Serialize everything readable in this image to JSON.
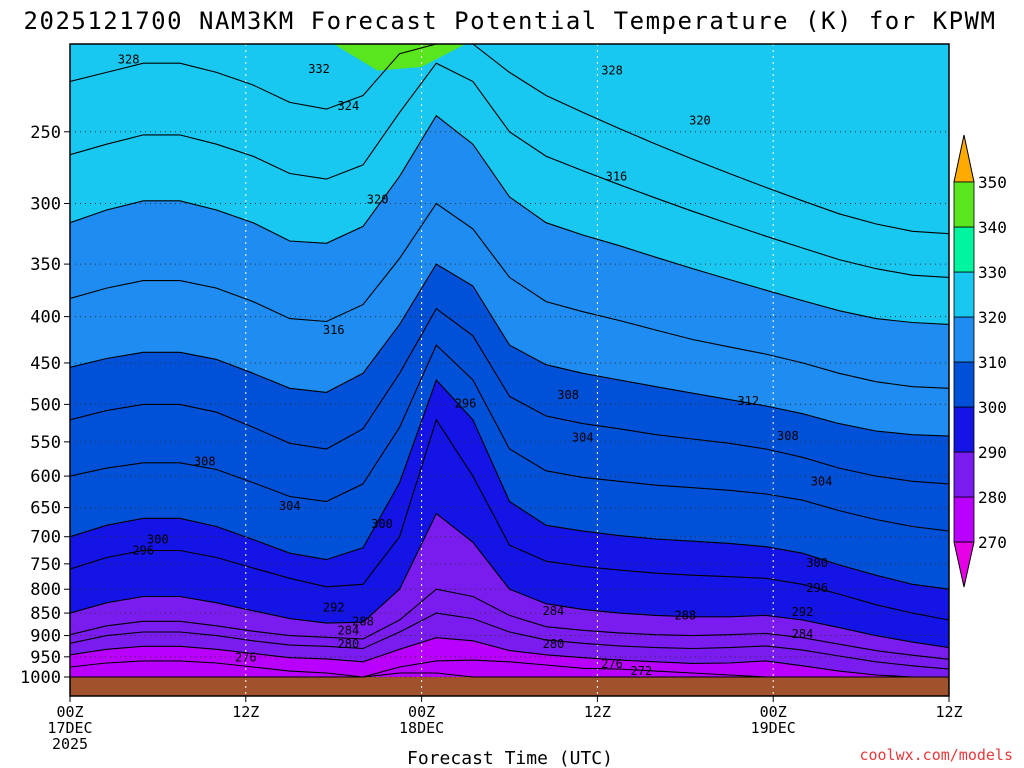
{
  "chart_data": {
    "type": "contour",
    "title": "2025121700 NAM3KM Forecast Potential Temperature (K) for KPWM",
    "xlabel": "Forecast Time (UTC)",
    "ylabel": "Pressure (hPa)",
    "yscale": "log",
    "ylim": [
      1000,
      200
    ],
    "y_ticks": [
      250,
      300,
      350,
      400,
      450,
      500,
      550,
      600,
      650,
      700,
      750,
      800,
      850,
      900,
      950,
      1000
    ],
    "x_range_hours": [
      0,
      60
    ],
    "x_ticks": [
      {
        "hour": 0,
        "l1": "00Z",
        "l2": "17DEC",
        "l3": "2025"
      },
      {
        "hour": 12,
        "l1": "12Z",
        "l2": "",
        "l3": ""
      },
      {
        "hour": 24,
        "l1": "00Z",
        "l2": "18DEC",
        "l3": ""
      },
      {
        "hour": 36,
        "l1": "12Z",
        "l2": "",
        "l3": ""
      },
      {
        "hour": 48,
        "l1": "00Z",
        "l2": "19DEC",
        "l3": ""
      },
      {
        "hour": 60,
        "l1": "12Z",
        "l2": "",
        "l3": ""
      }
    ],
    "colorbar": {
      "levels": [
        270,
        280,
        290,
        300,
        310,
        320,
        330,
        340,
        350
      ],
      "colors": [
        "#e600e6",
        "#b900ff",
        "#7a1cf0",
        "#1414e6",
        "#0050d8",
        "#1e8cf0",
        "#19c8f0",
        "#00f5a0",
        "#5ae61e",
        "#ffff14",
        "#ffaa00"
      ]
    },
    "isentropes": [
      {
        "theta": 272,
        "pres": [
          1000,
          1000,
          1000,
          1000,
          1000,
          1000,
          1000,
          1000,
          1000,
          990,
          990,
          1000,
          1000,
          1000,
          1000,
          1000,
          1000,
          1000,
          1000,
          1000,
          1000,
          1000,
          1000,
          1000,
          1000
        ]
      },
      {
        "theta": 276,
        "pres": [
          975,
          965,
          960,
          960,
          965,
          975,
          985,
          990,
          1000,
          975,
          960,
          958,
          962,
          970,
          978,
          980,
          985,
          990,
          995,
          1000,
          1000,
          1000,
          1000,
          1000,
          1000
        ]
      },
      {
        "theta": 280,
        "pres": [
          945,
          932,
          925,
          925,
          932,
          942,
          952,
          955,
          962,
          932,
          905,
          912,
          935,
          945,
          952,
          958,
          962,
          966,
          965,
          960,
          972,
          985,
          995,
          1000,
          1000
        ]
      },
      {
        "theta": 284,
        "pres": [
          918,
          900,
          892,
          892,
          900,
          912,
          922,
          925,
          930,
          892,
          850,
          862,
          892,
          910,
          918,
          924,
          928,
          930,
          928,
          924,
          934,
          948,
          962,
          972,
          980
        ]
      },
      {
        "theta": 288,
        "pres": [
          898,
          878,
          868,
          868,
          878,
          890,
          900,
          904,
          908,
          865,
          800,
          815,
          855,
          880,
          888,
          894,
          898,
          900,
          898,
          895,
          905,
          920,
          935,
          946,
          956
        ]
      },
      {
        "theta": 292,
        "pres": [
          850,
          828,
          815,
          815,
          828,
          845,
          862,
          872,
          870,
          800,
          660,
          710,
          800,
          830,
          842,
          850,
          855,
          858,
          858,
          855,
          865,
          882,
          900,
          915,
          928
        ]
      },
      {
        "theta": 296,
        "pres": [
          760,
          738,
          725,
          725,
          738,
          758,
          778,
          795,
          790,
          700,
          520,
          600,
          715,
          745,
          755,
          762,
          768,
          772,
          775,
          778,
          790,
          810,
          832,
          850,
          865
        ]
      },
      {
        "theta": 300,
        "pres": [
          700,
          680,
          668,
          668,
          682,
          705,
          730,
          742,
          720,
          610,
          470,
          520,
          640,
          680,
          690,
          698,
          704,
          708,
          712,
          718,
          730,
          752,
          772,
          790,
          800
        ]
      },
      {
        "theta": 304,
        "pres": [
          600,
          588,
          580,
          580,
          590,
          610,
          632,
          640,
          612,
          530,
          430,
          470,
          560,
          592,
          602,
          608,
          614,
          618,
          622,
          628,
          638,
          655,
          670,
          682,
          690
        ]
      },
      {
        "theta": 308,
        "pres": [
          520,
          508,
          500,
          500,
          510,
          530,
          552,
          560,
          532,
          462,
          392,
          420,
          490,
          515,
          525,
          532,
          540,
          546,
          552,
          560,
          572,
          588,
          600,
          608,
          612
        ]
      },
      {
        "theta": 312,
        "pres": [
          455,
          445,
          438,
          438,
          446,
          462,
          480,
          485,
          462,
          408,
          350,
          370,
          430,
          452,
          462,
          470,
          478,
          486,
          494,
          502,
          512,
          525,
          535,
          540,
          542
        ]
      },
      {
        "theta": 316,
        "pres": [
          382,
          372,
          365,
          365,
          372,
          385,
          402,
          405,
          388,
          345,
          300,
          320,
          362,
          385,
          395,
          404,
          414,
          424,
          432,
          440,
          450,
          462,
          472,
          478,
          480
        ]
      },
      {
        "theta": 320,
        "pres": [
          315,
          305,
          298,
          298,
          305,
          315,
          330,
          332,
          318,
          280,
          240,
          258,
          295,
          315,
          325,
          334,
          344,
          354,
          364,
          374,
          384,
          394,
          402,
          406,
          408
        ]
      },
      {
        "theta": 324,
        "pres": [
          265,
          258,
          252,
          252,
          258,
          266,
          278,
          282,
          272,
          238,
          210,
          220,
          250,
          266,
          276,
          286,
          296,
          306,
          316,
          326,
          336,
          346,
          354,
          360,
          362
        ]
      },
      {
        "theta": 328,
        "pres": [
          220,
          215,
          210,
          210,
          215,
          222,
          232,
          236,
          228,
          205,
          200,
          200,
          215,
          228,
          238,
          248,
          258,
          268,
          278,
          288,
          298,
          308,
          316,
          322,
          324
        ]
      }
    ],
    "contour_labels": [
      {
        "text": "328",
        "hour": 4.0,
        "pres": 208
      },
      {
        "text": "332",
        "hour": 17.0,
        "pres": 213
      },
      {
        "text": "328",
        "hour": 37.0,
        "pres": 214
      },
      {
        "text": "324",
        "hour": 19.0,
        "pres": 234
      },
      {
        "text": "320",
        "hour": 43.0,
        "pres": 243
      },
      {
        "text": "316",
        "hour": 37.3,
        "pres": 280
      },
      {
        "text": "320",
        "hour": 21.0,
        "pres": 297
      },
      {
        "text": "316",
        "hour": 18.0,
        "pres": 414
      },
      {
        "text": "308",
        "hour": 34.0,
        "pres": 488
      },
      {
        "text": "312",
        "hour": 46.3,
        "pres": 496
      },
      {
        "text": "296",
        "hour": 27.0,
        "pres": 499
      },
      {
        "text": "304",
        "hour": 35.0,
        "pres": 544
      },
      {
        "text": "308",
        "hour": 49.0,
        "pres": 542
      },
      {
        "text": "308",
        "hour": 9.2,
        "pres": 578
      },
      {
        "text": "304",
        "hour": 51.3,
        "pres": 608
      },
      {
        "text": "304",
        "hour": 15.0,
        "pres": 647
      },
      {
        "text": "300",
        "hour": 21.3,
        "pres": 678
      },
      {
        "text": "300",
        "hour": 6.0,
        "pres": 705
      },
      {
        "text": "296",
        "hour": 5.0,
        "pres": 725
      },
      {
        "text": "300",
        "hour": 51.0,
        "pres": 748
      },
      {
        "text": "296",
        "hour": 51.0,
        "pres": 797
      },
      {
        "text": "292",
        "hour": 18.0,
        "pres": 838
      },
      {
        "text": "284",
        "hour": 33.0,
        "pres": 846
      },
      {
        "text": "288",
        "hour": 42.0,
        "pres": 855
      },
      {
        "text": "292",
        "hour": 50.0,
        "pres": 848
      },
      {
        "text": "288",
        "hour": 20.0,
        "pres": 868
      },
      {
        "text": "284",
        "hour": 19.0,
        "pres": 889
      },
      {
        "text": "284",
        "hour": 50.0,
        "pres": 896
      },
      {
        "text": "280",
        "hour": 19.0,
        "pres": 920
      },
      {
        "text": "280",
        "hour": 33.0,
        "pres": 920
      },
      {
        "text": "276",
        "hour": 12.0,
        "pres": 952
      },
      {
        "text": "276",
        "hour": 37.0,
        "pres": 968
      },
      {
        "text": "272",
        "hour": 39.0,
        "pres": 985
      }
    ],
    "ground_color": "#a0522d"
  },
  "credit": "coolwx.com/models"
}
